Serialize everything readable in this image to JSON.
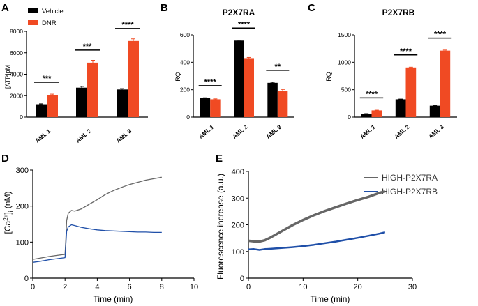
{
  "figure": {
    "colors": {
      "vehicle": "#000000",
      "dnr": "#f04a23",
      "ra": "#666666",
      "rb": "#1f4fa8"
    }
  },
  "chart_data": [
    {
      "panel": "A",
      "type": "bar",
      "title": "",
      "categories": [
        "AML 1",
        "AML 2",
        "AML 3"
      ],
      "series": [
        {
          "name": "Vehicle",
          "values": [
            1200,
            2750,
            2580
          ],
          "errors": [
            40,
            120,
            80
          ]
        },
        {
          "name": "DNR",
          "values": [
            2080,
            5080,
            7100
          ],
          "errors": [
            60,
            220,
            200
          ]
        }
      ],
      "significance": [
        "***",
        "***",
        "****"
      ],
      "ylabel": "[ATP]pM",
      "ylim": [
        0,
        8000
      ],
      "yticks": [
        0,
        2000,
        4000,
        6000,
        8000
      ],
      "legend": "top-left"
    },
    {
      "panel": "B",
      "type": "bar",
      "title": "P2X7RA",
      "categories": [
        "AML 1",
        "AML 2",
        "AML 3"
      ],
      "series": [
        {
          "name": "Vehicle",
          "values": [
            138,
            558,
            250
          ],
          "errors": [
            3,
            3,
            4
          ]
        },
        {
          "name": "DNR",
          "values": [
            130,
            430,
            192
          ],
          "errors": [
            3,
            5,
            10
          ]
        }
      ],
      "significance": [
        "****",
        "****",
        "**"
      ],
      "ylabel": "RQ",
      "ylim": [
        0,
        600
      ],
      "yticks": [
        0,
        200,
        400,
        600
      ]
    },
    {
      "panel": "C",
      "type": "bar",
      "title": "P2X7RB",
      "categories": [
        "AML 1",
        "AML 2",
        "AML 3"
      ],
      "series": [
        {
          "name": "Vehicle",
          "values": [
            60,
            325,
            208
          ],
          "errors": [
            3,
            4,
            4
          ]
        },
        {
          "name": "DNR",
          "values": [
            122,
            905,
            1212
          ],
          "errors": [
            4,
            6,
            10
          ]
        }
      ],
      "significance": [
        "****",
        "****",
        "****"
      ],
      "ylabel": "RQ",
      "ylim": [
        0,
        1500
      ],
      "yticks": [
        0,
        500,
        1000,
        1500
      ]
    },
    {
      "panel": "D",
      "type": "line",
      "xlabel": "Time (min)",
      "ylabel_main": "[Ca",
      "ylabel_sup": "2+",
      "ylabel_rest": "]",
      "ylabel_sub": "i",
      "ylabel_unit": " (nM)",
      "xlim": [
        0,
        10
      ],
      "ylim": [
        0,
        300
      ],
      "xticks": [
        0,
        2,
        4,
        6,
        8,
        10
      ],
      "yticks": [
        0,
        100,
        200,
        300
      ],
      "series": [
        {
          "name": "HIGH-P2X7RA",
          "x": [
            0,
            0.5,
            1,
            1.5,
            2,
            2.05,
            2.1,
            2.2,
            2.4,
            2.6,
            3,
            3.5,
            4,
            4.5,
            5,
            5.5,
            6,
            6.5,
            7,
            7.5,
            8
          ],
          "y": [
            52,
            56,
            60,
            63,
            66,
            110,
            160,
            180,
            188,
            186,
            192,
            205,
            218,
            232,
            243,
            252,
            260,
            266,
            272,
            276,
            280
          ]
        },
        {
          "name": "HIGH-P2X7RB",
          "x": [
            0,
            0.5,
            1,
            1.5,
            2,
            2.05,
            2.1,
            2.2,
            2.4,
            2.6,
            3,
            3.5,
            4,
            4.5,
            5,
            5.5,
            6,
            6.5,
            7,
            7.5,
            8
          ],
          "y": [
            44,
            47,
            51,
            54,
            57,
            95,
            130,
            142,
            148,
            146,
            141,
            137,
            134,
            132,
            131,
            130,
            129,
            128,
            128,
            127,
            127
          ]
        }
      ]
    },
    {
      "panel": "E",
      "type": "line",
      "xlabel": "Time (min)",
      "ylabel": "Fluorescence increase (a.u.)",
      "xlim": [
        0,
        30
      ],
      "ylim": [
        0,
        400
      ],
      "xticks": [
        0,
        10,
        20,
        30
      ],
      "yticks": [
        0,
        100,
        200,
        300,
        400
      ],
      "legend": "top-right",
      "series": [
        {
          "name": "HIGH-P2X7RA",
          "x": [
            0,
            1,
            2,
            3,
            4,
            6,
            8,
            10,
            12,
            14,
            16,
            18,
            20,
            22,
            24,
            25
          ],
          "y": [
            140,
            138,
            137,
            142,
            152,
            175,
            198,
            218,
            236,
            252,
            266,
            280,
            293,
            305,
            320,
            325
          ]
        },
        {
          "name": "HIGH-P2X7RB",
          "x": [
            0,
            1,
            2,
            3,
            4,
            6,
            8,
            10,
            12,
            14,
            16,
            18,
            20,
            22,
            24,
            25
          ],
          "y": [
            108,
            109,
            106,
            109,
            110,
            113,
            116,
            120,
            125,
            131,
            137,
            144,
            151,
            159,
            167,
            172
          ]
        }
      ]
    }
  ],
  "labels": {
    "A": "A",
    "B": "B",
    "C": "C",
    "D": "D",
    "E": "E",
    "legend_vehicle": "Vehicle",
    "legend_dnr": "DNR",
    "legend_ra": "HIGH-P2X7RA",
    "legend_rb": "HIGH-P2X7RB"
  }
}
